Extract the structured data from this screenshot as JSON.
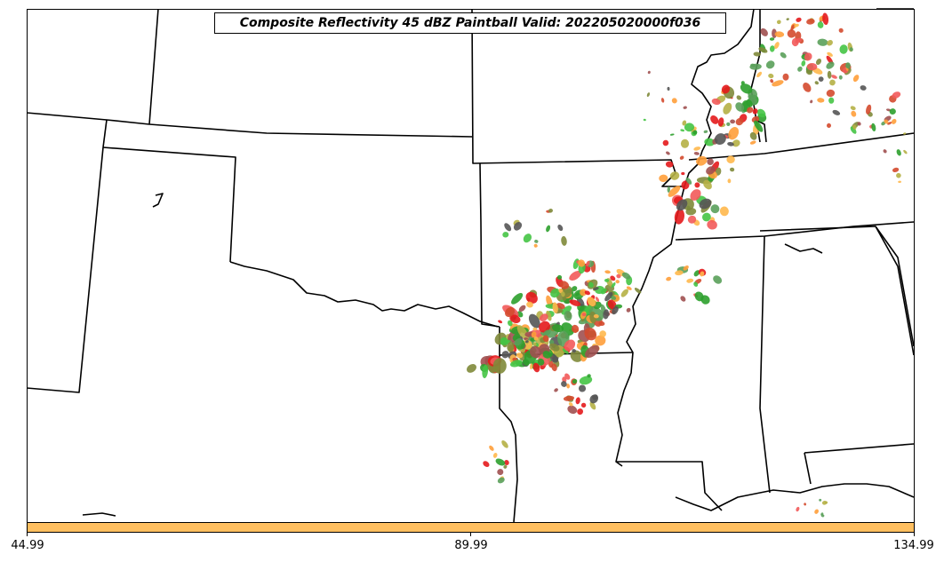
{
  "title": "Composite Reflectivity 45 dBZ Paintball Valid: 202205020000f036",
  "colorbar": {
    "color": "#ffbf60",
    "ticks": [
      "44.99",
      "89.99",
      "134.99"
    ]
  },
  "colors": {
    "member_palette": [
      "#2ca02c",
      "#e41a1c",
      "#ff9f3a",
      "#b5b045",
      "#555555",
      "#a05050",
      "#5aa05a",
      "#ffb84d",
      "#f25a5a",
      "#7f8a3a",
      "#d44a2e",
      "#45c445"
    ]
  }
}
